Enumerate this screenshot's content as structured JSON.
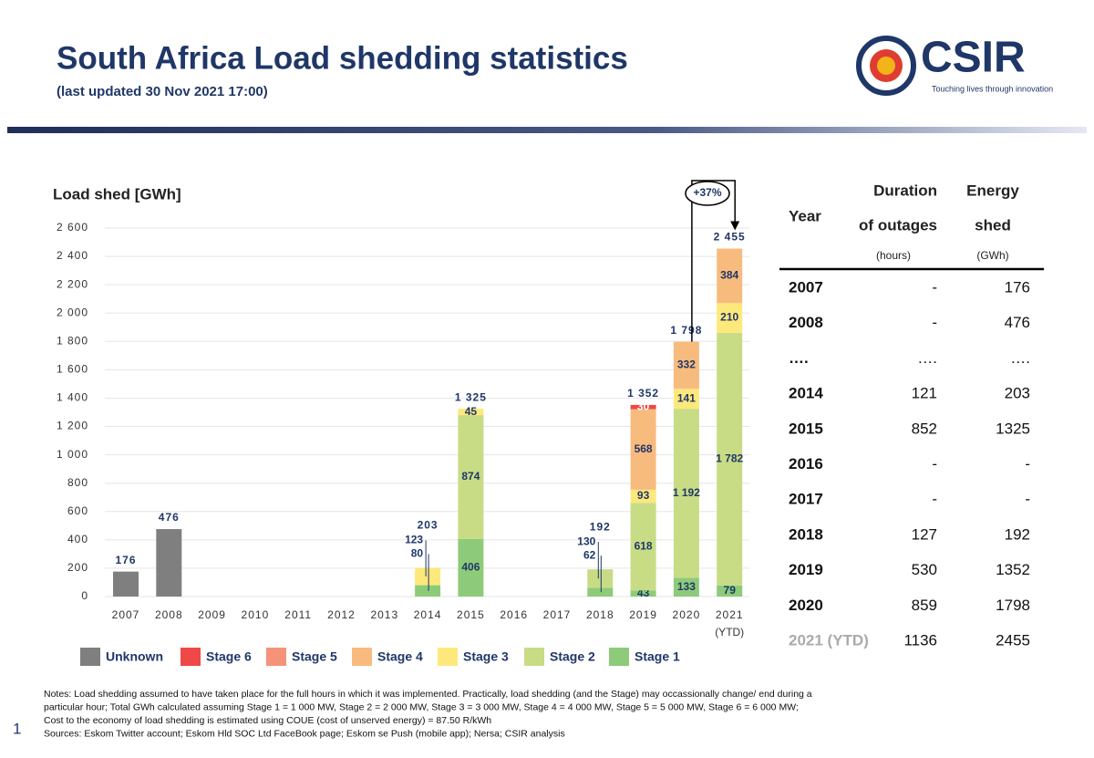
{
  "header": {
    "title": "South Africa Load shedding statistics",
    "subtitle": "(last updated 30 Nov 2021 17:00)",
    "logo_text": "CSIR",
    "logo_tagline": "Touching lives through innovation"
  },
  "chart_data": {
    "type": "stacked_bar",
    "y_label": "Load shed [GWh]",
    "categories": [
      "2007",
      "2008",
      "2009",
      "2010",
      "2011",
      "2012",
      "2013",
      "2014",
      "2015",
      "2016",
      "2017",
      "2018",
      "2019",
      "2020",
      "2021"
    ],
    "ytd_label": "(YTD)",
    "series": [
      {
        "name": "Unknown",
        "color": "#7f7f7f",
        "data_labels": false,
        "values": [
          176,
          476,
          null,
          null,
          null,
          null,
          null,
          null,
          null,
          null,
          null,
          null,
          null,
          null,
          null
        ]
      },
      {
        "name": "Stage 6",
        "color": "#ef4848",
        "data_labels": true,
        "values": [
          null,
          null,
          null,
          null,
          null,
          null,
          null,
          null,
          null,
          null,
          null,
          null,
          30,
          null,
          null
        ]
      },
      {
        "name": "Stage 5",
        "color": "#f4937a",
        "data_labels": true,
        "values": [
          null,
          null,
          null,
          null,
          null,
          null,
          null,
          null,
          null,
          null,
          null,
          null,
          null,
          null,
          null
        ]
      },
      {
        "name": "Stage 4",
        "color": "#f8bb7e",
        "data_labels": true,
        "values": [
          null,
          null,
          null,
          null,
          null,
          null,
          null,
          null,
          null,
          null,
          null,
          null,
          568,
          332,
          384
        ]
      },
      {
        "name": "Stage 3",
        "color": "#fde87c",
        "data_labels": true,
        "values": [
          null,
          null,
          null,
          null,
          null,
          null,
          null,
          123,
          45,
          null,
          null,
          null,
          93,
          141,
          210
        ]
      },
      {
        "name": "Stage 2",
        "color": "#c8dc86",
        "data_labels": true,
        "values": [
          null,
          null,
          null,
          null,
          null,
          null,
          null,
          null,
          874,
          null,
          null,
          130,
          618,
          1192,
          1782
        ],
        "value_labels": [
          null,
          null,
          null,
          null,
          null,
          null,
          null,
          null,
          "874",
          null,
          null,
          "130",
          "618",
          "1 192",
          "1 782"
        ]
      },
      {
        "name": "Stage 1",
        "color": "#8dcb7a",
        "data_labels": true,
        "values": [
          null,
          null,
          null,
          null,
          null,
          null,
          null,
          80,
          406,
          null,
          null,
          62,
          43,
          133,
          79
        ]
      }
    ],
    "totals": {
      "values": [
        176,
        476,
        null,
        null,
        null,
        null,
        null,
        203,
        1325,
        null,
        null,
        192,
        1352,
        1798,
        2455
      ],
      "value_labels": [
        "176",
        "476",
        null,
        null,
        null,
        null,
        null,
        "203",
        "1 325",
        null,
        null,
        "192",
        "1 352",
        "1 798",
        "2 455"
      ]
    },
    "annotation": "+37%",
    "ylim": [
      0,
      2600
    ],
    "yticks": [
      0,
      200,
      400,
      600,
      800,
      {
        "value": 1000,
        "label": "1 000"
      },
      {
        "value": 1200,
        "label": "1 200"
      },
      {
        "value": 1400,
        "label": "1 400"
      },
      {
        "value": 1600,
        "label": "1 600"
      },
      {
        "value": 1800,
        "label": "1 800"
      },
      {
        "value": 2000,
        "label": "2 000"
      },
      {
        "value": 2200,
        "label": "2 200"
      },
      {
        "value": 2400,
        "label": "2 400"
      },
      {
        "value": 2600,
        "label": "2 600"
      }
    ],
    "grid": true
  },
  "table": {
    "year": "Year",
    "duration": [
      "Duration",
      "of outages"
    ],
    "duration_unit": "(hours)",
    "energy": [
      "Energy",
      "shed"
    ],
    "energy_unit": "(GWh)",
    "rows": [
      [
        "2007",
        "-",
        "176"
      ],
      [
        "2008",
        "-",
        "476"
      ],
      [
        "….",
        "….",
        "…."
      ],
      [
        "2014",
        "121",
        "203"
      ],
      [
        "2015",
        "852",
        "1325"
      ],
      [
        "2016",
        "-",
        "-"
      ],
      [
        "2017",
        "-",
        "-"
      ],
      [
        "2018",
        "127",
        "192"
      ],
      [
        "2019",
        "530",
        "1352"
      ],
      [
        "2020",
        "859",
        "1798"
      ],
      [
        "2021 (YTD)",
        "1136",
        "2455"
      ]
    ]
  },
  "notes": [
    "Notes: Load shedding assumed to have taken place for the full hours in which it was implemented.  Practically, load shedding (and the Stage) may occassionally change/ end during a",
    "particular hour; Total GWh calculated assuming Stage 1 = 1 000 MW, Stage 2 = 2 000 MW, Stage 3 = 3 000 MW, Stage 4 = 4 000 MW, Stage 5 = 5 000 MW, Stage 6 = 6 000 MW;",
    "Cost to the economy of load shedding is estimated using COUE (cost of unserved energy) = 87.50 R/kWh",
    "Sources: Eskom Twitter account; Eskom Hld SOC Ltd FaceBook page; Eskom se Push (mobile app); Nersa; CSIR analysis"
  ],
  "page_number": "1"
}
